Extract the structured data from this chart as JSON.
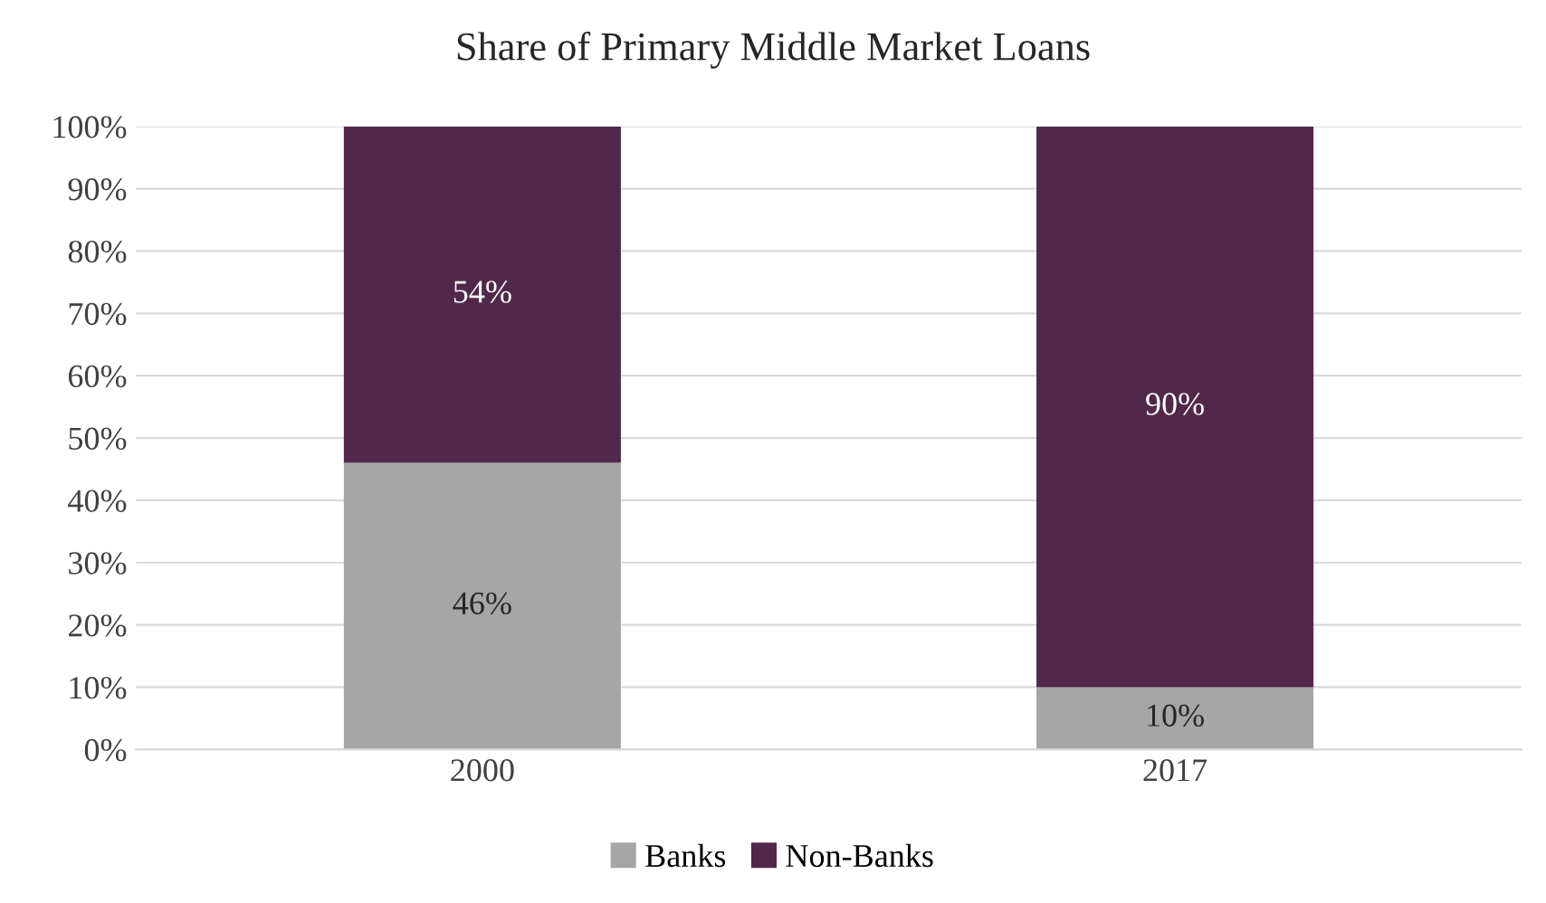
{
  "chart_data": {
    "type": "bar",
    "title": "Share of Primary Middle Market Loans",
    "categories": [
      "2000",
      "2017"
    ],
    "stacked": true,
    "series": [
      {
        "name": "Banks",
        "color": "#a6a6a6",
        "values": [
          46,
          10
        ],
        "value_labels": [
          "46%",
          "10%"
        ]
      },
      {
        "name": "Non-Banks",
        "color": "#52284a",
        "values": [
          54,
          90
        ],
        "value_labels": [
          "54%",
          "90%"
        ]
      }
    ],
    "ylim": [
      0,
      100
    ],
    "yticks": [
      {
        "value": 0,
        "label": "0%"
      },
      {
        "value": 10,
        "label": "10%"
      },
      {
        "value": 20,
        "label": "20%"
      },
      {
        "value": 30,
        "label": "30%"
      },
      {
        "value": 40,
        "label": "40%"
      },
      {
        "value": 50,
        "label": "50%"
      },
      {
        "value": 60,
        "label": "60%"
      },
      {
        "value": 70,
        "label": "70%"
      },
      {
        "value": 80,
        "label": "80%"
      },
      {
        "value": 90,
        "label": "90%"
      },
      {
        "value": 100,
        "label": "100%"
      }
    ],
    "grid": "y",
    "legend": "bottom"
  }
}
